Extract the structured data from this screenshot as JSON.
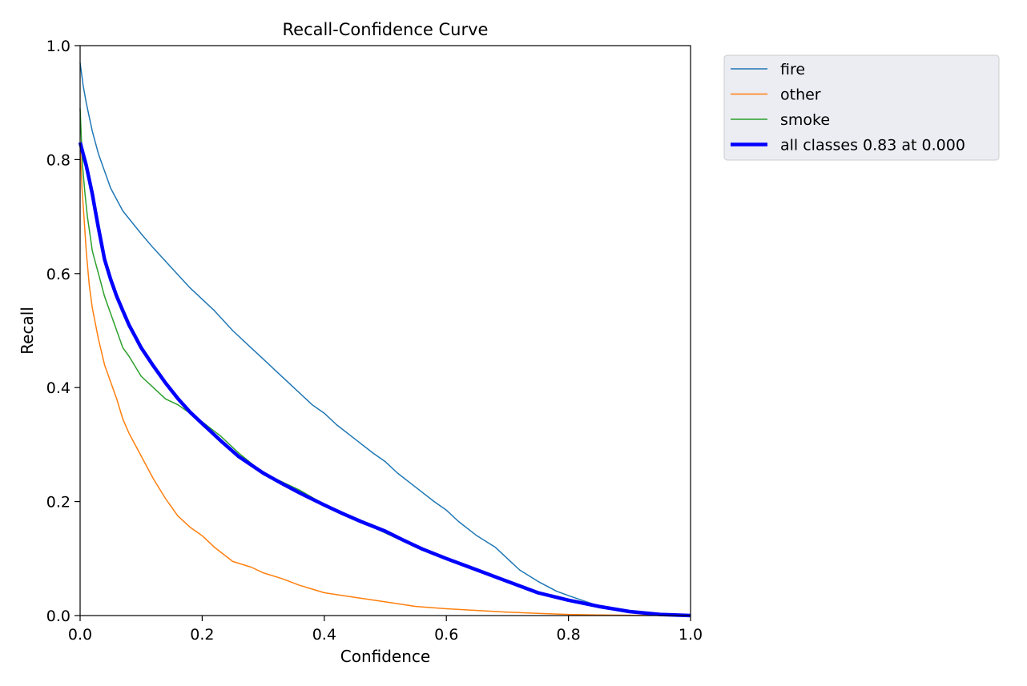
{
  "chart_data": {
    "type": "line",
    "title": "Recall-Confidence Curve",
    "xlabel": "Confidence",
    "ylabel": "Recall",
    "xlim": [
      0,
      1
    ],
    "ylim": [
      0,
      1
    ],
    "xticks": [
      0,
      0.2,
      0.4,
      0.6,
      0.8,
      1.0
    ],
    "xtick_labels": [
      "0.0",
      "0.2",
      "0.4",
      "0.6",
      "0.8",
      "1.0"
    ],
    "yticks": [
      0,
      0.2,
      0.4,
      0.6,
      0.8,
      1.0
    ],
    "ytick_labels": [
      "0.0",
      "0.2",
      "0.4",
      "0.6",
      "0.8",
      "1.0"
    ],
    "grid": false,
    "legend_position": "outside-upper-right",
    "series": [
      {
        "name": "fire",
        "color": "#1f77b4",
        "width": 1.5,
        "x": [
          0,
          0.005,
          0.01,
          0.02,
          0.03,
          0.05,
          0.07,
          0.1,
          0.12,
          0.15,
          0.18,
          0.2,
          0.22,
          0.25,
          0.28,
          0.3,
          0.32,
          0.35,
          0.38,
          0.4,
          0.42,
          0.45,
          0.48,
          0.5,
          0.52,
          0.55,
          0.58,
          0.6,
          0.62,
          0.65,
          0.68,
          0.7,
          0.72,
          0.75,
          0.78,
          0.8,
          0.83,
          0.85,
          0.88,
          0.9,
          0.92,
          0.95,
          0.97,
          1.0
        ],
        "y": [
          0.97,
          0.93,
          0.9,
          0.85,
          0.81,
          0.75,
          0.71,
          0.67,
          0.645,
          0.61,
          0.575,
          0.555,
          0.535,
          0.5,
          0.47,
          0.45,
          0.43,
          0.4,
          0.37,
          0.355,
          0.335,
          0.31,
          0.285,
          0.27,
          0.25,
          0.225,
          0.2,
          0.185,
          0.165,
          0.14,
          0.12,
          0.1,
          0.08,
          0.06,
          0.043,
          0.035,
          0.024,
          0.017,
          0.01,
          0.006,
          0.004,
          0.002,
          0.001,
          0.0
        ]
      },
      {
        "name": "other",
        "color": "#ff7f0e",
        "width": 1.5,
        "x": [
          0,
          0.003,
          0.007,
          0.01,
          0.015,
          0.02,
          0.03,
          0.04,
          0.05,
          0.06,
          0.07,
          0.08,
          0.09,
          0.1,
          0.12,
          0.14,
          0.16,
          0.18,
          0.2,
          0.22,
          0.25,
          0.28,
          0.3,
          0.33,
          0.36,
          0.4,
          0.45,
          0.5,
          0.55,
          0.6,
          0.65,
          0.7,
          0.75,
          0.8,
          0.85,
          0.9,
          1.0
        ],
        "y": [
          0.83,
          0.75,
          0.69,
          0.64,
          0.58,
          0.54,
          0.485,
          0.44,
          0.41,
          0.38,
          0.345,
          0.32,
          0.3,
          0.28,
          0.24,
          0.205,
          0.175,
          0.155,
          0.14,
          0.12,
          0.095,
          0.085,
          0.075,
          0.065,
          0.053,
          0.04,
          0.032,
          0.024,
          0.016,
          0.012,
          0.009,
          0.006,
          0.004,
          0.002,
          0.001,
          0.0005,
          0.0
        ]
      },
      {
        "name": "smoke",
        "color": "#2ca02c",
        "width": 1.5,
        "x": [
          0,
          0.004,
          0.008,
          0.012,
          0.016,
          0.02,
          0.025,
          0.03,
          0.04,
          0.05,
          0.06,
          0.07,
          0.08,
          0.1,
          0.12,
          0.14,
          0.16,
          0.18,
          0.2,
          0.23,
          0.26,
          0.3,
          0.33,
          0.36,
          0.4,
          0.43,
          0.46,
          0.5,
          0.53,
          0.56,
          0.6,
          0.65,
          0.7,
          0.75,
          0.8,
          0.85,
          0.9,
          0.95,
          1.0
        ],
        "y": [
          0.89,
          0.79,
          0.74,
          0.7,
          0.67,
          0.64,
          0.62,
          0.6,
          0.56,
          0.53,
          0.5,
          0.47,
          0.455,
          0.42,
          0.4,
          0.38,
          0.37,
          0.355,
          0.34,
          0.315,
          0.285,
          0.25,
          0.235,
          0.22,
          0.195,
          0.18,
          0.165,
          0.145,
          0.13,
          0.115,
          0.1,
          0.08,
          0.06,
          0.04,
          0.025,
          0.014,
          0.006,
          0.002,
          0.0
        ]
      },
      {
        "name": "all classes 0.83 at 0.000",
        "color": "#0000ff",
        "width": 4.5,
        "x": [
          0,
          0.005,
          0.01,
          0.015,
          0.02,
          0.025,
          0.03,
          0.04,
          0.05,
          0.06,
          0.07,
          0.08,
          0.09,
          0.1,
          0.12,
          0.14,
          0.16,
          0.18,
          0.2,
          0.23,
          0.26,
          0.3,
          0.33,
          0.36,
          0.4,
          0.43,
          0.46,
          0.5,
          0.53,
          0.56,
          0.6,
          0.65,
          0.7,
          0.75,
          0.8,
          0.85,
          0.9,
          0.95,
          1.0
        ],
        "y": [
          0.83,
          0.81,
          0.79,
          0.765,
          0.74,
          0.71,
          0.68,
          0.625,
          0.59,
          0.56,
          0.535,
          0.51,
          0.49,
          0.47,
          0.438,
          0.408,
          0.381,
          0.357,
          0.337,
          0.307,
          0.279,
          0.25,
          0.232,
          0.215,
          0.194,
          0.179,
          0.165,
          0.148,
          0.132,
          0.117,
          0.1,
          0.08,
          0.06,
          0.04,
          0.027,
          0.016,
          0.007,
          0.002,
          0.0
        ]
      }
    ]
  }
}
